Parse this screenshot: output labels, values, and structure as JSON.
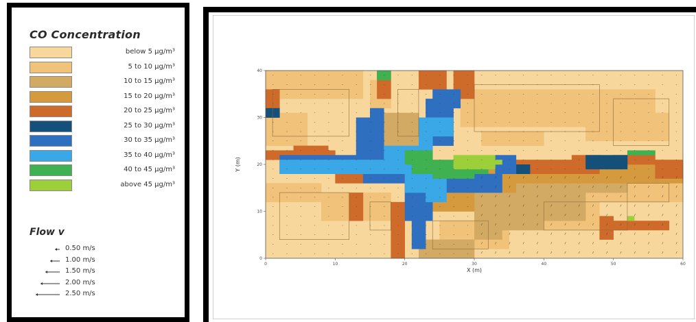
{
  "legend": {
    "title": "CO Concentration",
    "items": [
      {
        "label": "below  5 µg/m³",
        "color": "#f7d79c"
      },
      {
        "label": "5 to  10 µg/m³",
        "color": "#f0c27a"
      },
      {
        "label": "10 to  15 µg/m³",
        "color": "#d3aa64"
      },
      {
        "label": "15 to  20 µg/m³",
        "color": "#d59a3e"
      },
      {
        "label": "20 to  25 µg/m³",
        "color": "#cf6b2a"
      },
      {
        "label": "25 to  30 µg/m³",
        "color": "#14507a"
      },
      {
        "label": "30 to  35 µg/m³",
        "color": "#2f6fbf"
      },
      {
        "label": "35 to  40 µg/m³",
        "color": "#3aa7e6"
      },
      {
        "label": "40 to  45 µg/m³",
        "color": "#3fb150"
      },
      {
        "label": "above  45 µg/m³",
        "color": "#9ccf3a"
      }
    ]
  },
  "flow_legend": {
    "title": "Flow v",
    "items": [
      {
        "label": "0.50 m/s",
        "length": 0.5
      },
      {
        "label": "1.00 m/s",
        "length": 1.0
      },
      {
        "label": "1.50 m/s",
        "length": 1.5
      },
      {
        "label": "2.00 m/s",
        "length": 2.0
      },
      {
        "label": "2.50 m/s",
        "length": 2.5
      }
    ]
  },
  "chart_data": {
    "type": "heatmap",
    "xlabel": "X (m)",
    "ylabel": "Y (m)",
    "xlim": [
      0,
      60
    ],
    "ylim": [
      0,
      40
    ],
    "x_ticks": [
      "0",
      "10",
      "20",
      "30",
      "40",
      "50",
      "60"
    ],
    "y_ticks": [
      "0",
      "10",
      "20",
      "30",
      "40"
    ],
    "grid_resolution_m": 2,
    "band_colors": [
      "#f7d79c",
      "#f0c27a",
      "#d3aa64",
      "#d59a3e",
      "#cf6b2a",
      "#14507a",
      "#2f6fbf",
      "#3aa7e6",
      "#3fb150",
      "#9ccf3a"
    ],
    "background_color": "#f7d79c"
  }
}
